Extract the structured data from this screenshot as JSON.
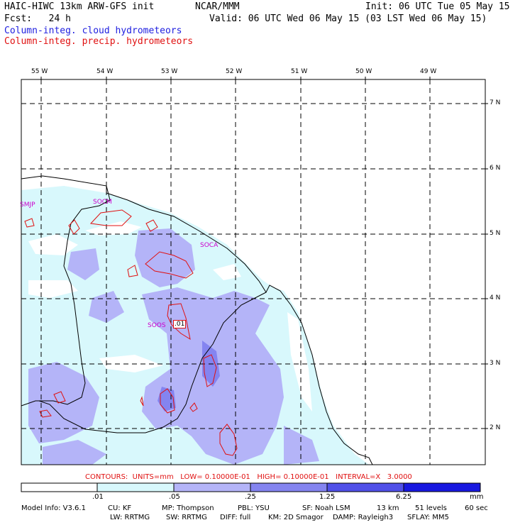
{
  "header": {
    "model": "HAIC-HIWC 13km ARW-GFS init",
    "center": "NCAR/MMM",
    "init": "Init: 06 UTC Tue 05 May 15",
    "fcst": "Fcst:   24 h",
    "valid": "Valid: 06 UTC Wed 06 May 15 (03 LST Wed 06 May 15)",
    "field1": "Column-integ. cloud hydrometeors",
    "field2": "Column-integ. precip. hydrometeors"
  },
  "axes": {
    "lon_labels": [
      "55 W",
      "54 W",
      "53 W",
      "52 W",
      "51 W",
      "50 W",
      "49 W"
    ],
    "lat_labels": [
      "7 N",
      "6 N",
      "5 N",
      "4 N",
      "3 N",
      "2 N"
    ]
  },
  "stations": [
    "SMJP",
    "SOCM",
    "SOCA",
    "SOOS"
  ],
  "contour_value": ".01",
  "contours_text": "CONTOURS:  UNITS=mm   LOW= 0.10000E-01   HIGH= 0.10000E-01   INTERVAL=X   3.0000",
  "colorbar": {
    "labels": [
      ".01",
      ".05",
      ".25",
      "1.25",
      "6.25"
    ],
    "units": "mm",
    "colors": [
      "#ffffff",
      "#d8f8fc",
      "#b4b4f8",
      "#8484f0",
      "#5050e8",
      "#1818e0"
    ]
  },
  "footer": {
    "line1": [
      "Model Info: V3.6.1",
      "CU: KF",
      "MP: Thompson",
      "PBL: YSU",
      "SF: Noah LSM",
      "13 km",
      "51 levels",
      "60 sec"
    ],
    "line2": [
      "LW: RRTMG",
      "SW: RRTMG",
      "DIFF: full",
      "KM: 2D Smagor",
      "DAMP: Rayleigh3",
      "SFLAY: MM5"
    ]
  }
}
